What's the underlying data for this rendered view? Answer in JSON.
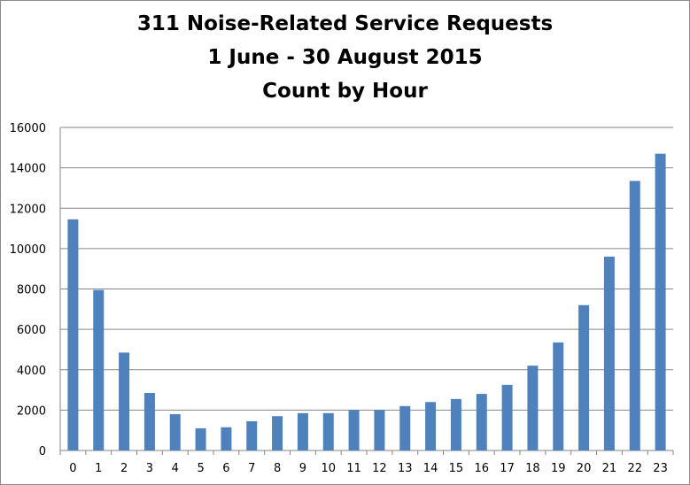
{
  "chart_data": {
    "type": "bar",
    "title": [
      "311 Noise-Related Service Requests",
      "1 June - 30 August 2015",
      "Count by Hour"
    ],
    "xlabel": "",
    "ylabel": "",
    "categories": [
      "0",
      "1",
      "2",
      "3",
      "4",
      "5",
      "6",
      "7",
      "8",
      "9",
      "10",
      "11",
      "12",
      "13",
      "14",
      "15",
      "16",
      "17",
      "18",
      "19",
      "20",
      "21",
      "22",
      "23"
    ],
    "values": [
      11450,
      7950,
      4850,
      2850,
      1800,
      1100,
      1150,
      1450,
      1700,
      1850,
      1850,
      2000,
      2000,
      2200,
      2400,
      2550,
      2800,
      3250,
      4200,
      5350,
      7200,
      9600,
      13350,
      14700
    ],
    "ylim": [
      0,
      16000
    ],
    "yticks": [
      "0",
      "2000",
      "4000",
      "6000",
      "8000",
      "10000",
      "12000",
      "14000",
      "16000"
    ],
    "grid": true,
    "legend": "none",
    "bar_color": "#4f81bd",
    "grid_color": "#868686"
  }
}
